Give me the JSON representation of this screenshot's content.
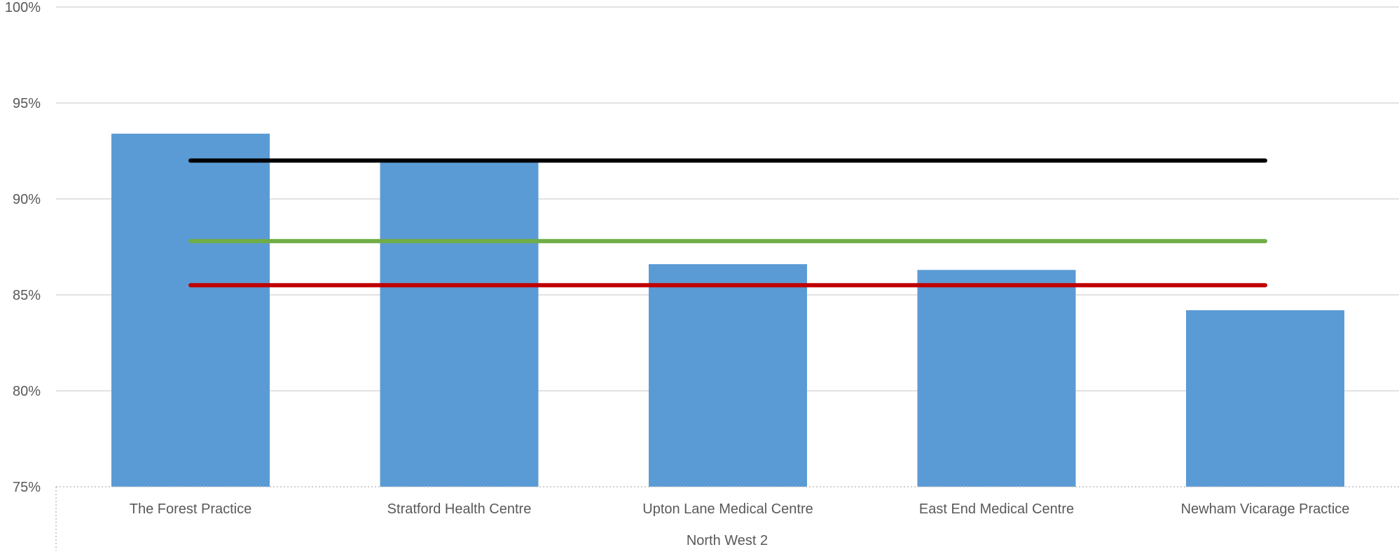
{
  "chart_data": {
    "type": "bar",
    "title": "",
    "xlabel": "",
    "ylabel": "",
    "group_label": "North West 2",
    "categories": [
      "The Forest Practice",
      "Stratford Health Centre",
      "Upton Lane Medical Centre",
      "East End Medical Centre",
      "Newham Vicarage Practice"
    ],
    "series": [
      {
        "type": "bar",
        "color": "#5b9bd5",
        "values": [
          93.4,
          92.0,
          86.6,
          86.3,
          84.2
        ]
      }
    ],
    "reference_lines": [
      {
        "color": "#000000",
        "value": 92.0
      },
      {
        "color": "#70ad47",
        "value": 87.8
      },
      {
        "color": "#c00000",
        "value": 85.5
      }
    ],
    "ylim": [
      75,
      100
    ],
    "yticks": [
      75,
      80,
      85,
      90,
      95,
      100
    ],
    "ytick_labels": [
      "75%",
      "80%",
      "85%",
      "90%",
      "95%",
      "100%"
    ],
    "grid": true,
    "legend": "none"
  }
}
